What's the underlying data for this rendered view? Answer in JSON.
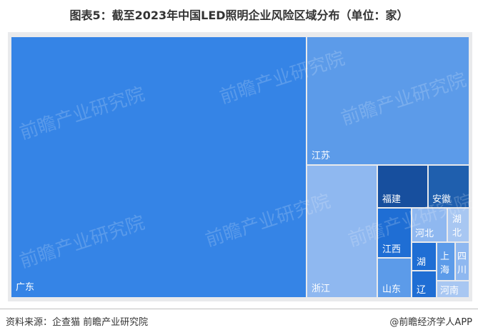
{
  "title": "图表5：截至2023年中国LED照明企业风险区域分布（单位：家）",
  "footer": {
    "source": "资料来源：企查猫 前瞻产业研究院",
    "brand": "@前瞻经济学人APP"
  },
  "watermark_text": "前瞻产业研究院",
  "colors": {
    "guangdong": "#3584e6",
    "jiangsu": "#5c9be9",
    "zhejiang": "#8fb8f0",
    "fujian": "#174f9e",
    "anhui": "#1f5fae",
    "jiangxi": "#1f6ed4",
    "hebei": "#8fb8f0",
    "hubei": "#a8c7f2",
    "hunan": "#1f6ed4",
    "shanghai": "#5c9be9",
    "sichuan": "#8fb8f0",
    "shandong": "#5c9be9",
    "liaoning": "#1f6ed4",
    "henan": "#a8c7f2"
  },
  "chart_data": {
    "type": "treemap",
    "title": "图表5：截至2023年中国LED照明企业风险区域分布（单位：家）",
    "items": [
      {
        "key": "guangdong",
        "label": "广东"
      },
      {
        "key": "jiangsu",
        "label": "江苏"
      },
      {
        "key": "zhejiang",
        "label": "浙江"
      },
      {
        "key": "fujian",
        "label": "福建"
      },
      {
        "key": "anhui",
        "label": "安徽"
      },
      {
        "key": "jiangxi",
        "label": "江西"
      },
      {
        "key": "hebei",
        "label": "河北"
      },
      {
        "key": "hubei",
        "label": "湖北"
      },
      {
        "key": "hunan",
        "label": "湖"
      },
      {
        "key": "shanghai",
        "label": "上海"
      },
      {
        "key": "sichuan",
        "label": "四川"
      },
      {
        "key": "shandong",
        "label": "山东"
      },
      {
        "key": "liaoning",
        "label": "辽"
      },
      {
        "key": "henan",
        "label": "河南"
      }
    ]
  }
}
